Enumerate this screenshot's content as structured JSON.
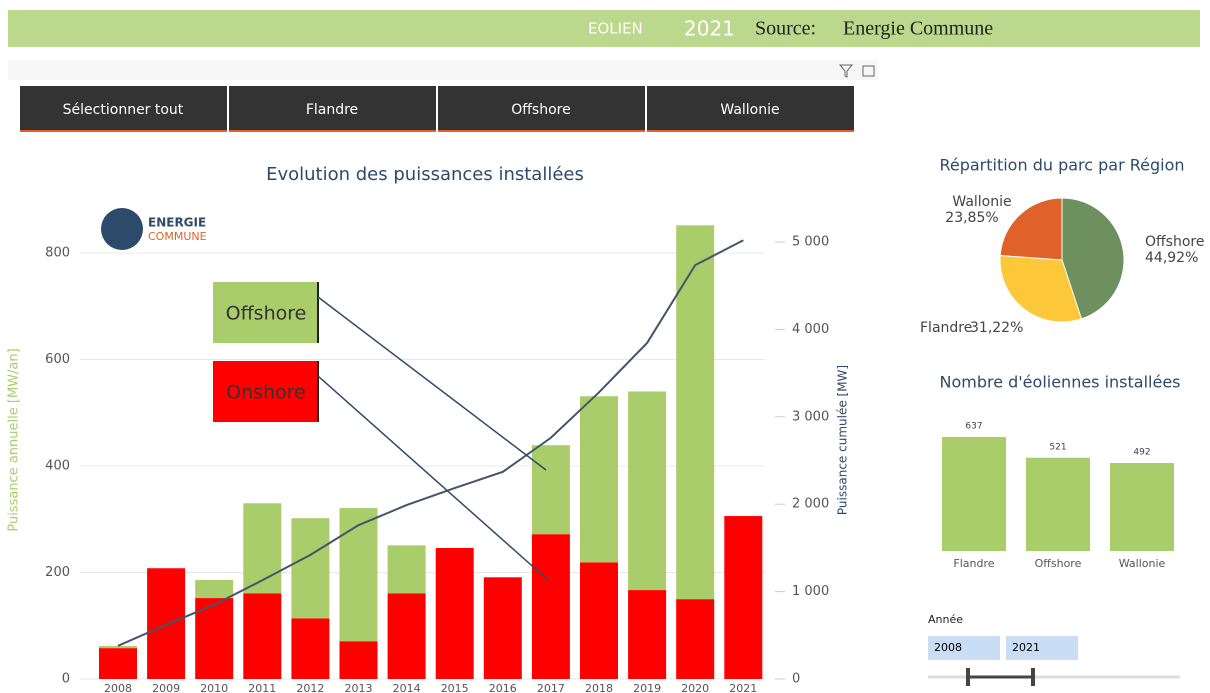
{
  "header": {
    "section": "EOLIEN",
    "year": "2021",
    "source_label": "Source:",
    "source": "Energie Commune"
  },
  "buttons": [
    "Sélectionner tout",
    "Flandre",
    "Offshore",
    "Wallonie"
  ],
  "logo": {
    "line1": "ENERGIE",
    "line2": "COMMUNE"
  },
  "slider": {
    "label": "Année",
    "from": "2008",
    "to": "2021"
  },
  "chart_data": [
    {
      "type": "bar",
      "title": "Evolution des puissances installées",
      "stacked": true,
      "y_label": "Puissance annuelle [MW/an]",
      "y2_label": "Puissance cumulée [MW]",
      "categories": [
        "2008",
        "2009",
        "2010",
        "2011",
        "2012",
        "2013",
        "2014",
        "2015",
        "2016",
        "2017",
        "2018",
        "2019",
        "2020",
        "2021"
      ],
      "series": [
        {
          "name": "Onshore",
          "color": "#ff0000",
          "values": [
            58,
            208,
            152,
            161,
            114,
            71,
            161,
            246,
            191,
            272,
            219,
            167,
            150,
            306
          ]
        },
        {
          "name": "Offshore",
          "color": "#a9cd6a",
          "values": [
            4,
            0,
            34,
            169,
            188,
            250,
            90,
            0,
            0,
            167,
            312,
            373,
            702,
            0
          ]
        },
        {
          "name": "Puissance cumulée",
          "type": "line",
          "axis": "y2",
          "color": "#44546a",
          "values": [
            380,
            620,
            850,
            1130,
            1420,
            1760,
            1990,
            2185,
            2370,
            2760,
            3280,
            3845,
            4735,
            5020
          ]
        }
      ],
      "ylim": [
        0,
        800
      ],
      "yticks": [
        0,
        200,
        400,
        600,
        800
      ],
      "y2lim": [
        0,
        5000
      ],
      "y2ticks": [
        0,
        {
          "value": 1000,
          "label": "1 000"
        },
        {
          "value": 2000,
          "label": "2 000"
        },
        {
          "value": 3000,
          "label": "3 000"
        },
        {
          "value": 4000,
          "label": "4 000"
        },
        {
          "value": 5000,
          "label": "5 000"
        }
      ]
    },
    {
      "type": "pie",
      "title": "Répartition du parc par Région",
      "categories": [
        "Offshore",
        "Flandre",
        "Wallonie"
      ],
      "values": [
        44.92,
        31.22,
        23.85
      ],
      "value_labels": [
        "44,92%",
        "31,22%",
        "23,85%"
      ],
      "colors": [
        "#6e8f5e",
        "#fdc73a",
        "#e0622a"
      ]
    },
    {
      "type": "bar",
      "title": "Nombre d'éoliennes installées",
      "categories": [
        "Flandre",
        "Offshore",
        "Wallonie"
      ],
      "values": [
        637,
        521,
        492
      ],
      "color": "#a9cd6a"
    }
  ]
}
